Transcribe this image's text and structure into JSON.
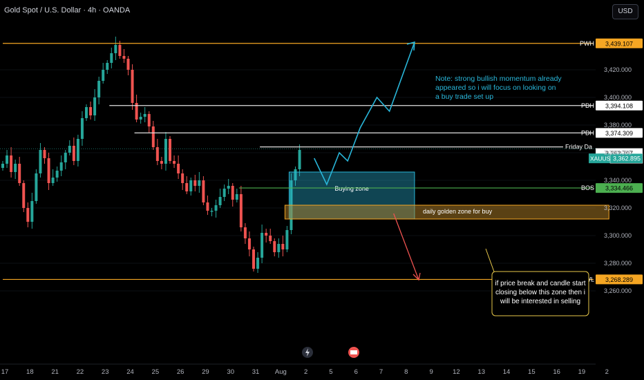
{
  "header": {
    "title": "Gold Spot / U.S. Dollar · 4h · OANDA",
    "currency_button": "USD"
  },
  "colors": {
    "bull": "#26a69a",
    "bear": "#ef5350",
    "orange": "#f5a623",
    "cyan": "#29b6d9",
    "green": "#4caf50",
    "white": "#e0e0e0"
  },
  "chart_data": {
    "type": "candlestick",
    "symbol": "XAUUSD",
    "ylim": [
      3250,
      3450
    ],
    "y_ticks": [
      3260,
      3280,
      3300,
      3320,
      3340,
      3360,
      3380,
      3400,
      3420
    ],
    "y_tick_labels": [
      "3,260.000",
      "3,280.000",
      "3,300.000",
      "3,320.000",
      "3,340.000",
      "3,360.000",
      "3,380.000",
      "3,400.000",
      "3,420.000"
    ],
    "x_labels": [
      {
        "t": 0.5,
        "label": "17"
      },
      {
        "t": 6.5,
        "label": "18"
      },
      {
        "t": 12.5,
        "label": "21"
      },
      {
        "t": 18.5,
        "label": "22"
      },
      {
        "t": 24.5,
        "label": "23"
      },
      {
        "t": 30.5,
        "label": "24"
      },
      {
        "t": 36.5,
        "label": "25"
      },
      {
        "t": 42.5,
        "label": "26"
      },
      {
        "t": 48.5,
        "label": "29"
      },
      {
        "t": 54.5,
        "label": "30"
      },
      {
        "t": 60.5,
        "label": "31"
      },
      {
        "t": 66.5,
        "label": "Aug"
      },
      {
        "t": 72.5,
        "label": "2"
      },
      {
        "t": 78.5,
        "label": "5"
      },
      {
        "t": 84.5,
        "label": "6"
      },
      {
        "t": 90.5,
        "label": "7"
      },
      {
        "t": 96.5,
        "label": "8"
      },
      {
        "t": 102.5,
        "label": "9"
      },
      {
        "t": 108.5,
        "label": "12"
      },
      {
        "t": 114.5,
        "label": "13"
      },
      {
        "t": 120.5,
        "label": "14"
      },
      {
        "t": 126.5,
        "label": "15"
      },
      {
        "t": 132.5,
        "label": "16"
      },
      {
        "t": 138.5,
        "label": "19"
      },
      {
        "t": 144.5,
        "label": "2"
      }
    ],
    "closes": [
      3352,
      3358,
      3346,
      3352,
      3338,
      3320,
      3310,
      3325,
      3345,
      3362,
      3356,
      3338,
      3342,
      3347,
      3353,
      3360,
      3365,
      3354,
      3370,
      3385,
      3393,
      3387,
      3400,
      3412,
      3420,
      3425,
      3432,
      3438,
      3430,
      3428,
      3420,
      3396,
      3384,
      3386,
      3388,
      3379,
      3364,
      3354,
      3352,
      3370,
      3354,
      3352,
      3345,
      3338,
      3332,
      3340,
      3336,
      3340,
      3324,
      3318,
      3318,
      3322,
      3328,
      3334,
      3336,
      3326,
      3330,
      3306,
      3298,
      3290,
      3276,
      3284,
      3302,
      3300,
      3296,
      3288,
      3294,
      3290,
      3304,
      3340,
      3348,
      3362
    ],
    "levels": [
      {
        "name": "PWH",
        "value": 3439.107,
        "label": "3,439.107",
        "color": "orange",
        "x0": 0
      },
      {
        "name": "PDH",
        "value": 3394.108,
        "label": "3,394.108",
        "color": "white",
        "x0": 25.5
      },
      {
        "name": "PDH",
        "value": 3374.309,
        "label": "3,374.309",
        "color": "white",
        "x0": 31.5
      },
      {
        "name": "Friday Da",
        "value": 3364.2,
        "label": "",
        "color": "white",
        "x0": 61.5
      },
      {
        "name": "BOS",
        "value": 3334.466,
        "label": "3,334.466",
        "color": "green",
        "x0": 56.5
      },
      {
        "name": "PWL",
        "value": 3268.289,
        "label": "3,268.289",
        "color": "orange",
        "x0": 0
      }
    ],
    "price_tags": [
      {
        "value": 3363.707,
        "label": "3,363.707",
        "style": "white"
      },
      {
        "value": 3362.895,
        "label": "3,362.895",
        "style": "current",
        "symbol": "XAUUSD"
      }
    ],
    "zones": [
      {
        "name": "Buying zone",
        "x0": 68.5,
        "x1": 98.5,
        "y0": 3346,
        "y1": 3312,
        "fill": "rgba(41,182,217,0.38)",
        "stroke": "#29b6d9"
      },
      {
        "name": "daily golden zone for buy",
        "x0": 67.5,
        "x1": 145,
        "y0": 3322,
        "y1": 3312,
        "fill": "rgba(180,130,40,0.5)",
        "stroke": "#f5a623"
      }
    ],
    "projection_up": [
      [
        74.5,
        3356
      ],
      [
        77.5,
        3337
      ],
      [
        80.5,
        3360
      ],
      [
        82.5,
        3354
      ],
      [
        85.5,
        3378
      ],
      [
        89.5,
        3400
      ],
      [
        92.5,
        3390
      ],
      [
        98.5,
        3440
      ]
    ],
    "projection_down": [
      [
        93.5,
        3316
      ],
      [
        99.5,
        3268
      ]
    ],
    "annotations": [
      {
        "name": "note-text",
        "lines": [
          "Note: strong bullish momentum already",
          "appeared so i will focus on looking on",
          "a buy trade set up"
        ]
      },
      {
        "name": "sell-callout",
        "lines": [
          "if price break and candle start",
          "closing below this zone then i",
          "will be interested in selling"
        ]
      }
    ]
  }
}
